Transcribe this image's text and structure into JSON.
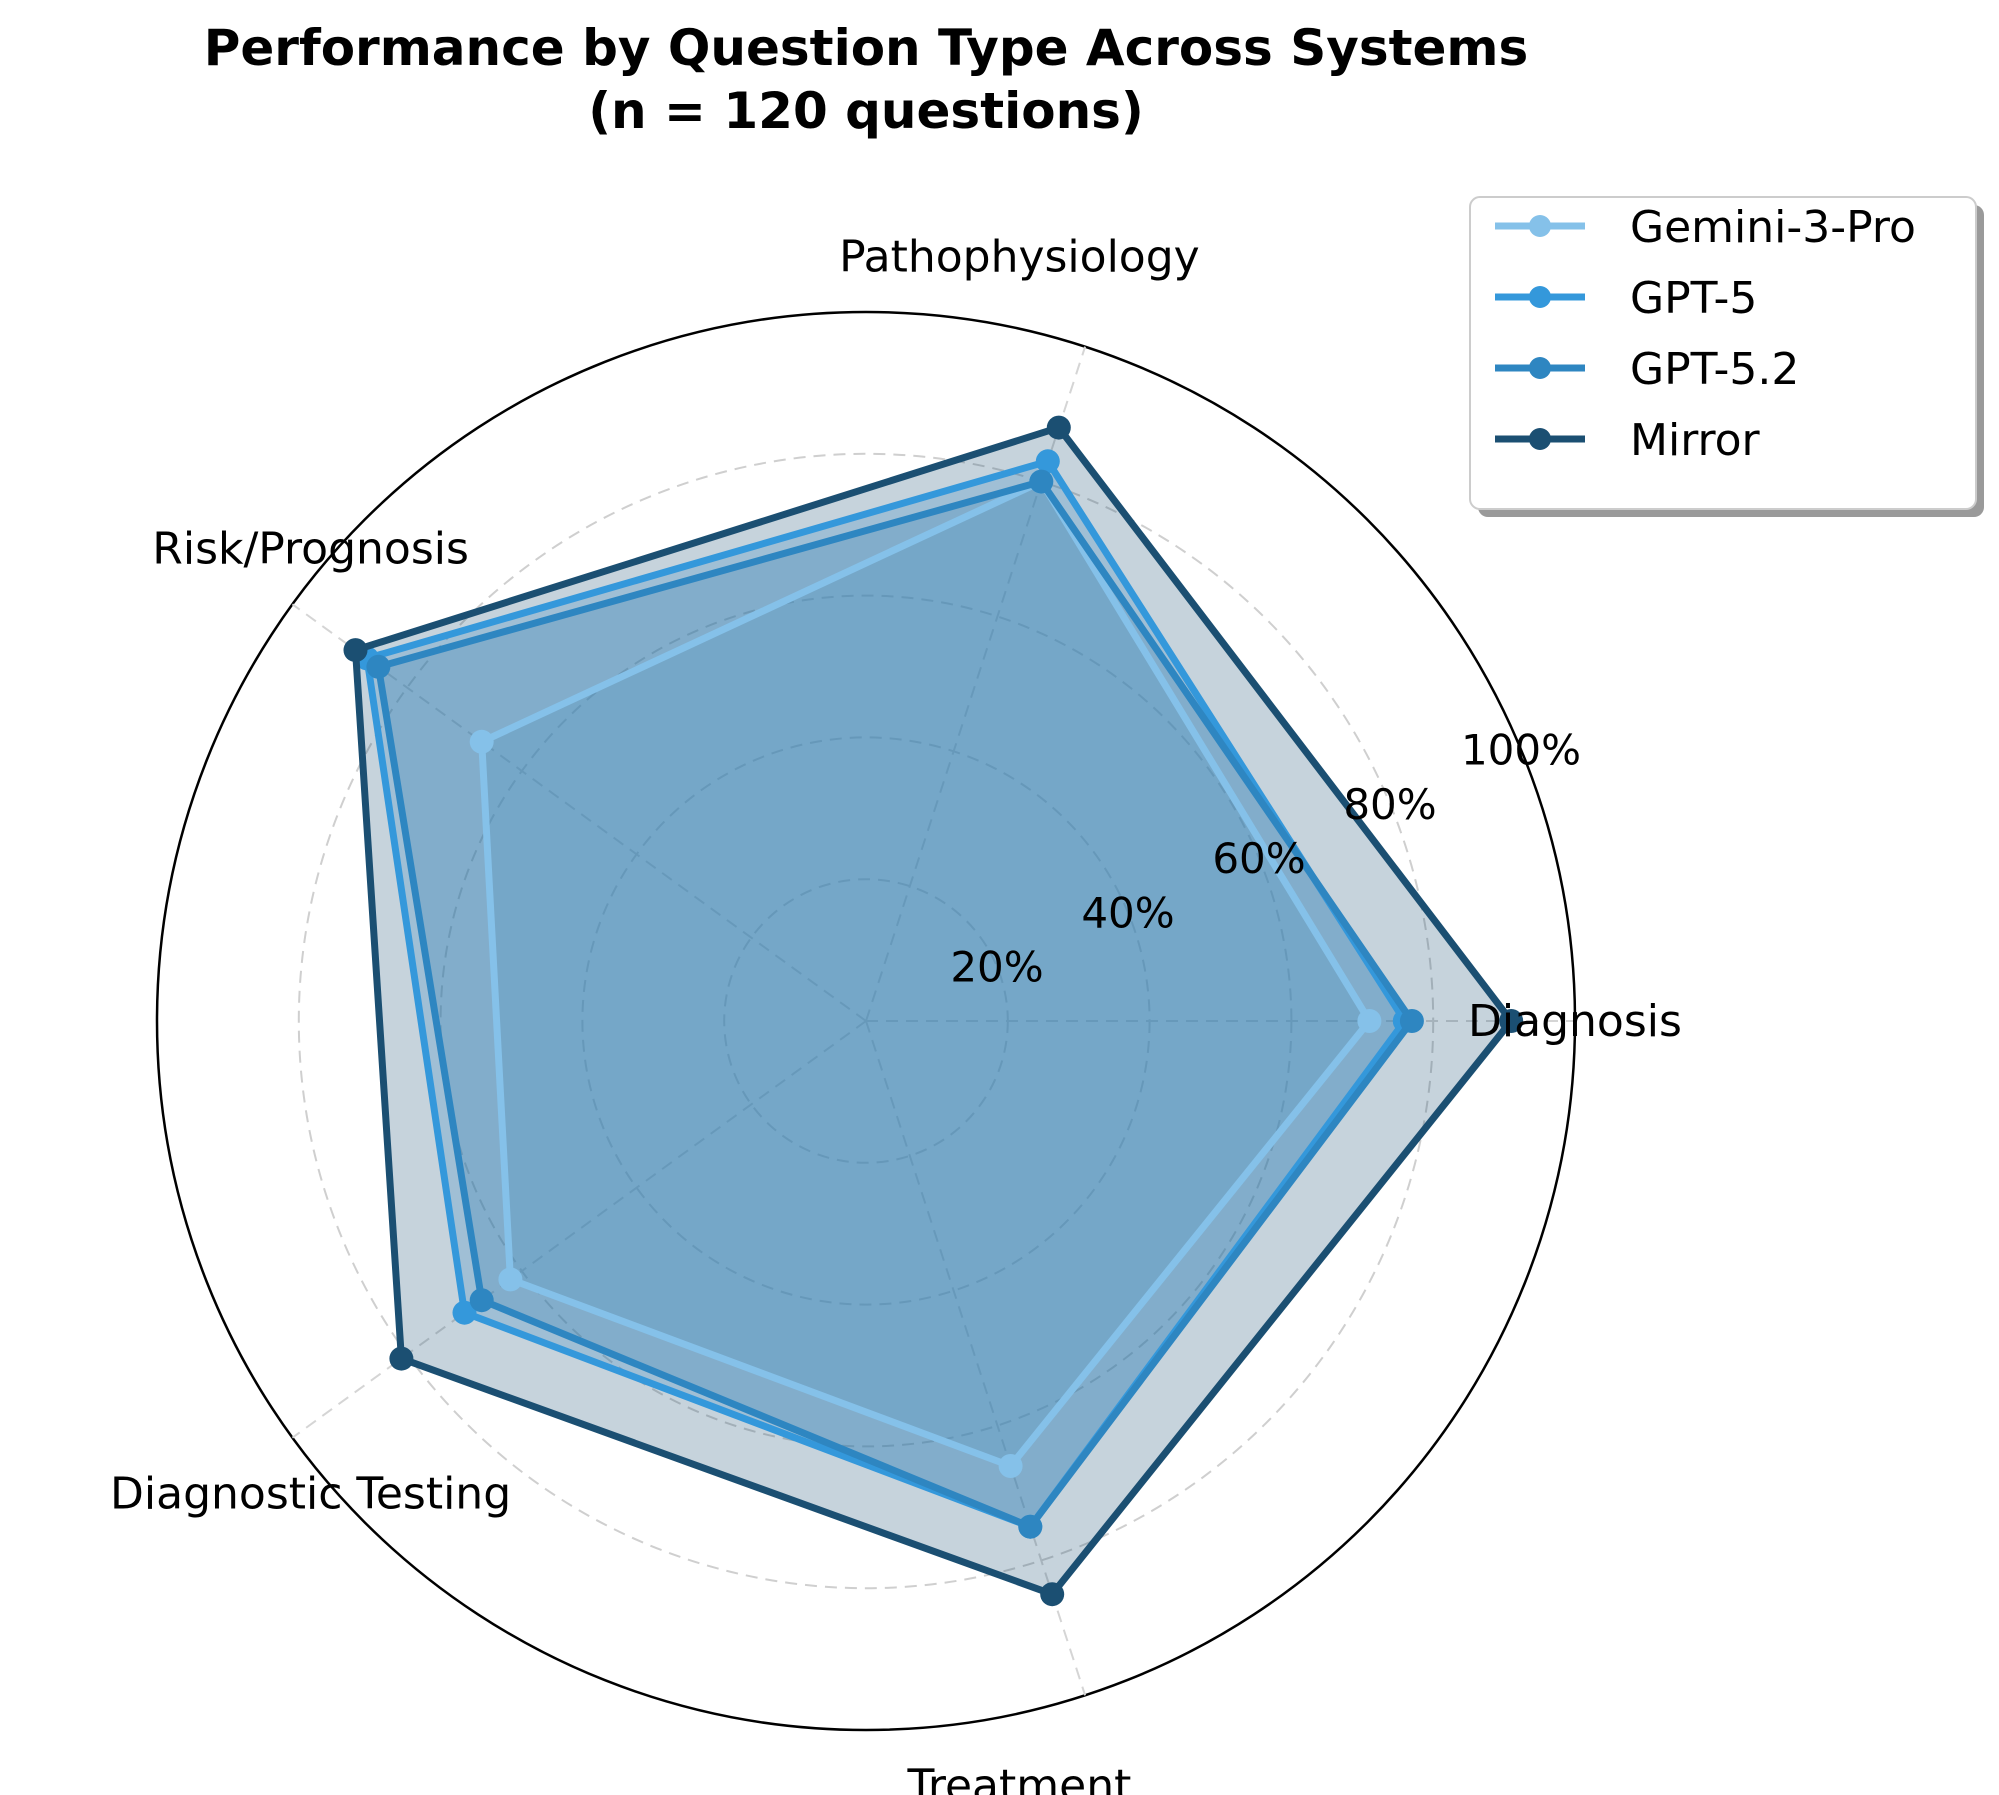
{
  "chart_data": {
    "type": "radar",
    "title": "Performance by Question Type Across Systems",
    "subtitle": "(n = 120 questions)",
    "categories": [
      "Diagnosis",
      "Pathophysiology",
      "Risk/Prognosis",
      "Diagnostic Testing",
      "Treatment"
    ],
    "radial_ticks": [
      20,
      40,
      60,
      80,
      100
    ],
    "radial_tick_labels": [
      "20%",
      "40%",
      "60%",
      "80%",
      "100%"
    ],
    "rlim": [
      0,
      100
    ],
    "grid": true,
    "legend_position": "top-right",
    "series": [
      {
        "name": "Gemini-3-Pro",
        "values": [
          71,
          80,
          67,
          62,
          66
        ],
        "color": "#85C1E9"
      },
      {
        "name": "GPT-5",
        "values": [
          76,
          83,
          87,
          70,
          75
        ],
        "color": "#3498DB"
      },
      {
        "name": "GPT-5.2",
        "values": [
          77,
          80,
          85,
          67,
          75
        ],
        "color": "#2E86C1"
      },
      {
        "name": "Mirror",
        "values": [
          91,
          88,
          89,
          81,
          85
        ],
        "color": "#1B4F72"
      }
    ]
  }
}
